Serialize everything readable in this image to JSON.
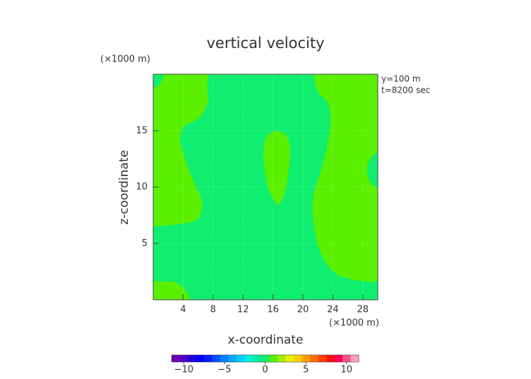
{
  "chart_data": {
    "type": "contour",
    "title": "vertical velocity",
    "x_label": "x-coordinate",
    "y_label": "z-coordinate",
    "x_unit": "(×1000 m)",
    "y_unit": "(×1000 m)",
    "annotations": [
      "y=100 m",
      "t=8200 sec"
    ],
    "xlim": [
      0,
      30
    ],
    "xticks": [
      4,
      8,
      12,
      16,
      20,
      24,
      28
    ],
    "ylim": [
      0,
      20
    ],
    "yticks": [
      5,
      10,
      15
    ],
    "grid": true,
    "colorbar": {
      "lim": [
        -11.5,
        11.5
      ],
      "ticks": [
        {
          "value": -10,
          "label": "−10"
        },
        {
          "value": -5,
          "label": "−5"
        },
        0,
        5,
        10
      ],
      "colors": [
        "#6a00b0",
        "#5000c8",
        "#2800e0",
        "#0000ff",
        "#0020ff",
        "#0050ff",
        "#0080ff",
        "#00a8ff",
        "#00d0ff",
        "#00f0e0",
        "#00f0a0",
        "#10ee70",
        "#5af000",
        "#a0f000",
        "#e8f000",
        "#ffd000",
        "#ffa000",
        "#ff7000",
        "#ff4000",
        "#ff1000",
        "#ff0050",
        "#ff5090",
        "#ffa0c0"
      ]
    }
  }
}
